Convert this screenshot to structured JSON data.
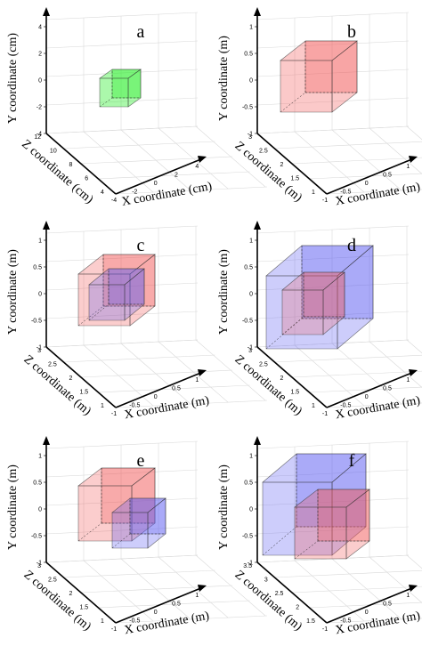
{
  "panels": [
    {
      "letter": "a",
      "y_label": "Y coordinate (cm)",
      "z_label": "Z coordinate (cm)",
      "x_label": "X coordinate (cm)",
      "y_ticks": [
        "4",
        "2",
        "0",
        "-2",
        "-4"
      ],
      "z_ticks": [
        "12",
        "10",
        "8",
        "6",
        "4"
      ],
      "x_ticks": [
        "-4",
        "-2",
        "0",
        "2",
        "4"
      ],
      "boxes": [
        {
          "color": "#33ee33"
        }
      ]
    },
    {
      "letter": "b",
      "y_label": "Y coordinate (m)",
      "z_label": "Z coordinate (m)",
      "x_label": "X coordinate (m)",
      "y_ticks": [
        "1",
        "0.5",
        "0",
        "-0.5",
        "-1"
      ],
      "z_ticks": [
        "3",
        "2.5",
        "2",
        "1.5",
        "1"
      ],
      "x_ticks": [
        "-1",
        "-0.5",
        "0",
        "0.5",
        "1"
      ],
      "boxes": [
        {
          "color": "#f25a5a"
        }
      ]
    },
    {
      "letter": "c",
      "y_label": "Y coordinate (m)",
      "z_label": "Z coordinate (m)",
      "x_label": "X coordinate (m)",
      "y_ticks": [
        "1",
        "0.5",
        "0",
        "-0.5",
        "-1"
      ],
      "z_ticks": [
        "3",
        "2.5",
        "2",
        "1.5",
        "1"
      ],
      "x_ticks": [
        "-1",
        "-0.5",
        "0",
        "0.5",
        "1"
      ],
      "boxes": [
        {
          "color": "#f25a5a"
        },
        {
          "color": "#5a5af2"
        }
      ]
    },
    {
      "letter": "d",
      "y_label": "Y coordinate (m)",
      "z_label": "Z coordinate (m)",
      "x_label": "X coordinate (m)",
      "y_ticks": [
        "1",
        "0.5",
        "0",
        "-0.5",
        "-1"
      ],
      "z_ticks": [
        "3",
        "2.5",
        "2",
        "1.5",
        "1"
      ],
      "x_ticks": [
        "-1",
        "-0.5",
        "0",
        "0.5",
        "1"
      ],
      "boxes": [
        {
          "color": "#5a5af2"
        },
        {
          "color": "#f25a5a"
        }
      ]
    },
    {
      "letter": "e",
      "y_label": "Y coordinate (m)",
      "z_label": "Z coordinate (m)",
      "x_label": "X coordinate (m)",
      "y_ticks": [
        "1",
        "0.5",
        "0",
        "-0.5",
        "-1"
      ],
      "z_ticks": [
        "3",
        "2.5",
        "2",
        "1.5",
        "1"
      ],
      "x_ticks": [
        "-1",
        "-0.5",
        "0",
        "0.5",
        "1"
      ],
      "boxes": [
        {
          "color": "#f25a5a"
        },
        {
          "color": "#5a5af2"
        }
      ]
    },
    {
      "letter": "f",
      "y_label": "Y coordinate (m)",
      "z_label": "Z coordinate (m)",
      "x_label": "X coordinate (m)",
      "y_ticks": [
        "1",
        "0.5",
        "0",
        "-0.5",
        "-1"
      ],
      "z_ticks": [
        "3.5",
        "3",
        "2.5",
        "2",
        "1.5"
      ],
      "x_ticks": [
        "-1",
        "-0.5",
        "0",
        "0.5",
        "1"
      ],
      "boxes": [
        {
          "color": "#5a5af2"
        },
        {
          "color": "#f25a5a"
        }
      ]
    }
  ]
}
